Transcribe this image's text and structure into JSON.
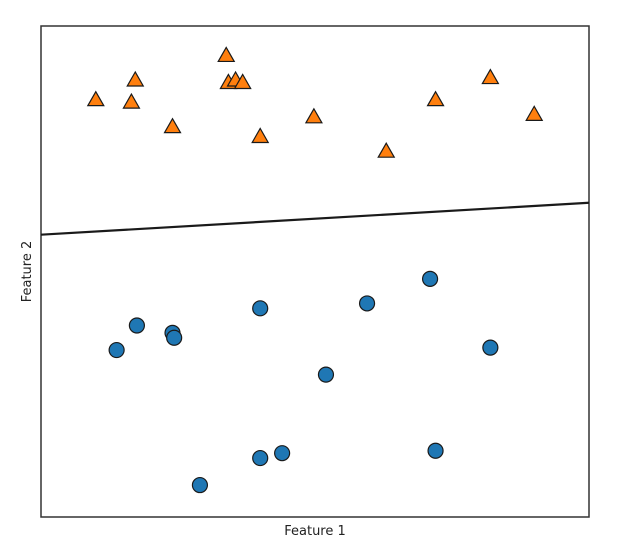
{
  "chart_data": {
    "type": "scatter",
    "title": "",
    "xlabel": "Feature 1",
    "ylabel": "Feature 2",
    "xlim": [
      0,
      10
    ],
    "ylim": [
      0,
      10
    ],
    "grid": false,
    "series": [
      {
        "marker": "triangle",
        "color": "#ff7f0e",
        "points": [
          [
            1.0,
            8.5
          ],
          [
            1.65,
            8.45
          ],
          [
            1.72,
            8.9
          ],
          [
            2.4,
            7.95
          ],
          [
            3.38,
            9.4
          ],
          [
            3.42,
            8.85
          ],
          [
            3.55,
            8.9
          ],
          [
            3.68,
            8.85
          ],
          [
            4.0,
            7.75
          ],
          [
            4.98,
            8.15
          ],
          [
            6.3,
            7.45
          ],
          [
            7.2,
            8.5
          ],
          [
            8.2,
            8.95
          ],
          [
            9.0,
            8.2
          ]
        ]
      },
      {
        "marker": "circle",
        "color": "#1f77b4",
        "points": [
          [
            1.38,
            3.4
          ],
          [
            1.75,
            3.9
          ],
          [
            2.4,
            3.75
          ],
          [
            2.43,
            3.65
          ],
          [
            2.9,
            0.65
          ],
          [
            4.0,
            4.25
          ],
          [
            4.0,
            1.2
          ],
          [
            4.4,
            1.3
          ],
          [
            5.2,
            2.9
          ],
          [
            5.95,
            4.35
          ],
          [
            7.1,
            4.85
          ],
          [
            7.2,
            1.35
          ],
          [
            8.2,
            3.45
          ]
        ]
      }
    ],
    "decision_boundary": {
      "x": [
        0,
        10
      ],
      "y": [
        5.75,
        6.4
      ]
    }
  }
}
